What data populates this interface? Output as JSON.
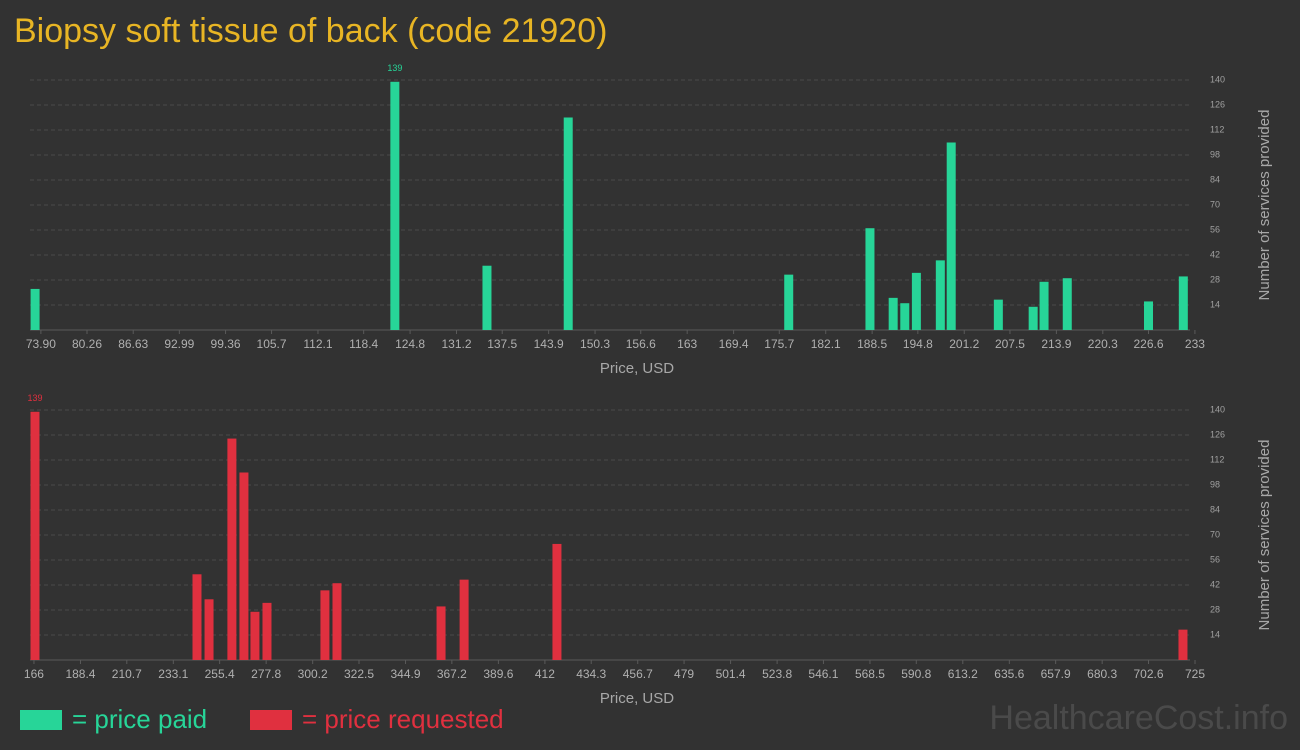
{
  "title": "Biopsy soft tissue of back (code 21920)",
  "watermark": "HealthcareCost.info",
  "chart_data": [
    {
      "type": "bar",
      "x_label": "Price, USD",
      "y_label": "Number of services provided",
      "x": [
        73.1,
        122.7,
        135.4,
        146.6,
        177.0,
        188.2,
        191.4,
        193.0,
        194.6,
        197.9,
        199.4,
        205.9,
        210.7,
        212.2,
        215.4,
        226.6,
        231.4
      ],
      "series": [
        {
          "name": "= price paid",
          "color": "#27d598",
          "values": [
            23,
            139,
            36,
            119,
            31,
            57,
            18,
            15,
            32,
            39,
            105,
            17,
            13,
            27,
            29,
            16,
            30
          ]
        }
      ],
      "xlim": [
        72.4,
        233.7
      ],
      "xticks": [
        {
          "value": 73.9,
          "label": "73.90"
        },
        80.26,
        86.63,
        92.99,
        99.36,
        105.7,
        112.1,
        118.4,
        124.8,
        131.2,
        137.5,
        143.9,
        150.3,
        156.6,
        163,
        169.4,
        175.7,
        182.1,
        188.5,
        194.8,
        201.2,
        207.5,
        213.9,
        220.3,
        226.6,
        233
      ],
      "ylim": [
        0,
        140
      ],
      "yticks": [
        14,
        28,
        42,
        56,
        70,
        84,
        98,
        112,
        126,
        140
      ],
      "grid": true
    },
    {
      "type": "bar",
      "x_label": "Price, USD",
      "y_label": "Number of services provided",
      "x": [
        166.5,
        244.5,
        250.3,
        261.3,
        267.1,
        272.4,
        278.2,
        306.1,
        311.9,
        362.0,
        373.1,
        417.8,
        719.2
      ],
      "series": [
        {
          "name": "= price requested",
          "color": "#e0303f",
          "values": [
            139,
            48,
            34,
            124,
            105,
            27,
            32,
            39,
            43,
            30,
            45,
            65,
            17
          ]
        }
      ],
      "xlim": [
        164.1,
        727.4
      ],
      "xticks": [
        166,
        188.4,
        210.7,
        233.1,
        255.4,
        277.8,
        300.2,
        322.5,
        344.9,
        367.2,
        389.6,
        412,
        434.3,
        456.7,
        479,
        501.4,
        523.8,
        546.1,
        568.5,
        590.8,
        613.2,
        635.6,
        657.9,
        680.3,
        702.6,
        725
      ],
      "ylim": [
        0,
        140
      ],
      "yticks": [
        14,
        28,
        42,
        56,
        70,
        84,
        98,
        112,
        126,
        140
      ],
      "grid": true
    }
  ]
}
